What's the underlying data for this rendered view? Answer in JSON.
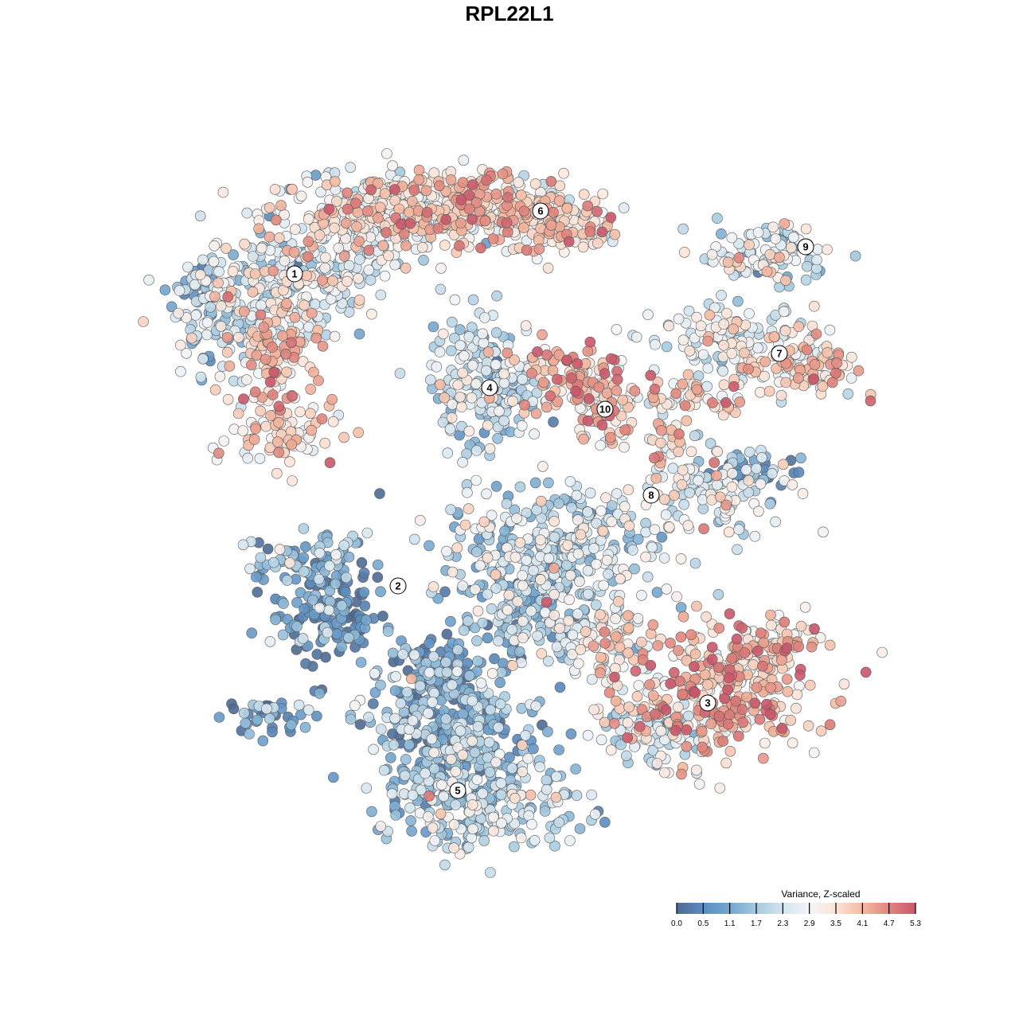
{
  "chart_data": {
    "type": "scatter",
    "title": "RPL22L1",
    "xlabel": "",
    "ylabel": "",
    "xlim": [
      -46,
      50
    ],
    "ylim": [
      -46,
      46
    ],
    "grid": false,
    "point_note": "embedding clusters summarized as gaussian blobs: [center_x, center_y, spread_x, spread_y, count, mean_value]",
    "blobs": [
      [
        -27,
        29,
        8,
        5,
        250,
        2.6
      ],
      [
        -20,
        37,
        8,
        4,
        200,
        3.0
      ],
      [
        -30,
        20,
        4,
        6,
        120,
        3.6
      ],
      [
        -37,
        24,
        4,
        5,
        80,
        2.0
      ],
      [
        -39,
        28,
        3,
        3,
        40,
        1.5
      ],
      [
        -13,
        37,
        6,
        4,
        150,
        3.3
      ],
      [
        -28,
        9,
        5,
        3,
        80,
        3.4
      ],
      [
        -3,
        38,
        7,
        3,
        220,
        3.6
      ],
      [
        7,
        36,
        5,
        3,
        120,
        3.5
      ],
      [
        32,
        32,
        6,
        3,
        100,
        2.6
      ],
      [
        28,
        21,
        7,
        3,
        120,
        2.7
      ],
      [
        37,
        18,
        5,
        3,
        100,
        3.5
      ],
      [
        -3,
        16,
        5,
        6,
        200,
        2.2
      ],
      [
        8,
        17,
        5,
        3,
        80,
        4.2
      ],
      [
        12,
        12,
        3,
        3,
        60,
        3.8
      ],
      [
        26,
        2,
        6,
        4,
        120,
        2.5
      ],
      [
        30,
        5,
        4,
        1,
        40,
        0.5
      ],
      [
        20,
        8,
        3,
        4,
        40,
        3.6
      ],
      [
        22,
        14,
        6,
        2,
        60,
        3.4
      ],
      [
        -23,
        -13,
        5,
        5,
        150,
        0.6
      ],
      [
        -25,
        -6,
        5,
        2,
        60,
        1.5
      ],
      [
        -30,
        -26,
        4,
        2,
        40,
        0.8
      ],
      [
        5,
        -5,
        10,
        6,
        350,
        2.1
      ],
      [
        2,
        -13,
        6,
        5,
        120,
        1.6
      ],
      [
        -7,
        -28,
        8,
        8,
        350,
        1.5
      ],
      [
        -3,
        -37,
        9,
        4,
        200,
        2.0
      ],
      [
        -10,
        -23,
        4,
        6,
        100,
        0.6
      ],
      [
        26,
        -23,
        9,
        6,
        300,
        4.0
      ],
      [
        32,
        -18,
        5,
        3,
        80,
        3.8
      ],
      [
        12,
        -17,
        6,
        4,
        100,
        3.2
      ],
      [
        18,
        -28,
        5,
        3,
        80,
        2.3
      ]
    ],
    "cluster_labels": [
      {
        "label": "1",
        "x": -27,
        "y": 29.6
      },
      {
        "label": "2",
        "x": -14,
        "y": -9.6
      },
      {
        "label": "3",
        "x": 24.9,
        "y": -24.3
      },
      {
        "label": "4",
        "x": -2.5,
        "y": 15.3
      },
      {
        "label": "5",
        "x": -6.5,
        "y": -35.3
      },
      {
        "label": "6",
        "x": 3.9,
        "y": 37.5
      },
      {
        "label": "7",
        "x": 33.9,
        "y": 19.6
      },
      {
        "label": "8",
        "x": 17.8,
        "y": 1.8
      },
      {
        "label": "9",
        "x": 37.2,
        "y": 33
      },
      {
        "label": "10",
        "x": 12,
        "y": 12.6
      }
    ],
    "colorbar": {
      "title": "Variance, Z-scaled",
      "ticks": [
        "0.0",
        "0.5",
        "1.1",
        "1.7",
        "2.3",
        "2.9",
        "3.5",
        "4.1",
        "4.7",
        "5.3"
      ],
      "range": [
        0,
        5.3
      ],
      "colors": [
        "#4d6a94",
        "#5b8dc0",
        "#74a7cf",
        "#a4c9df",
        "#d3e4ee",
        "#f3f5f7",
        "#fbe3d6",
        "#f4b9a0",
        "#e0857c",
        "#c9586a"
      ]
    }
  }
}
